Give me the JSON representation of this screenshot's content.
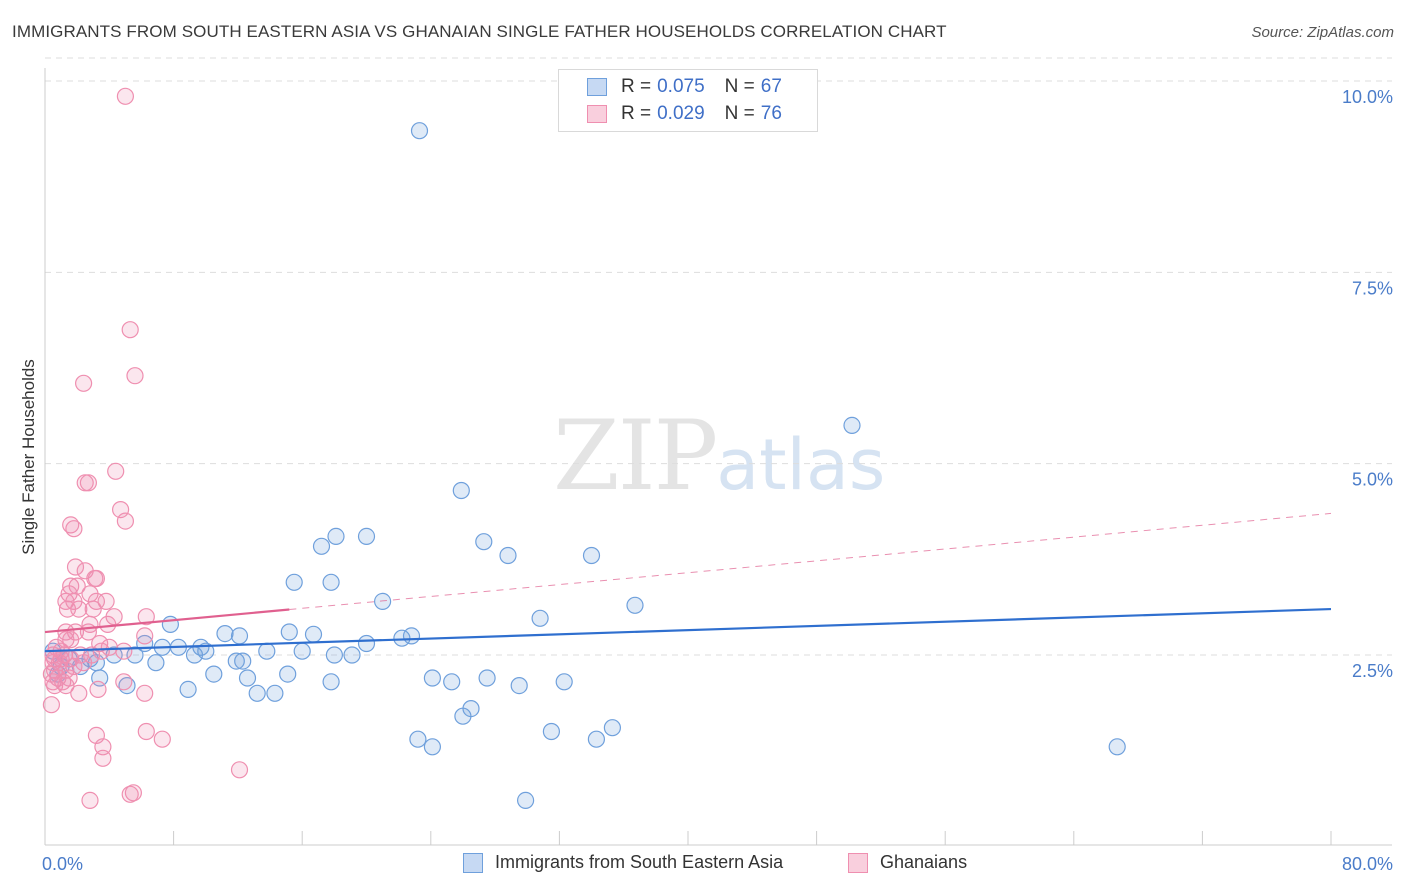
{
  "title": "IMMIGRANTS FROM SOUTH EASTERN ASIA VS GHANAIAN SINGLE FATHER HOUSEHOLDS CORRELATION CHART",
  "source": "Source: ZipAtlas.com",
  "watermark": {
    "zip": "ZIP",
    "atlas": "atlas"
  },
  "legend": {
    "blue": {
      "r_label": "R = ",
      "r_value": "0.075",
      "n_label": "N = ",
      "n_value": "67"
    },
    "pink": {
      "r_label": "R = ",
      "r_value": "0.029",
      "n_label": "N = ",
      "n_value": "76"
    }
  },
  "colors": {
    "blue": "#6fa0dc",
    "blue_line": "#2f6fcf",
    "pink": "#ef8fb0",
    "pink_line": "#e0608f",
    "axis_text": "#4a7cc9",
    "grid": "#dddddd"
  },
  "chart_data": {
    "type": "scatter",
    "title": "IMMIGRANTS FROM SOUTH EASTERN ASIA VS GHANAIAN SINGLE FATHER HOUSEHOLDS CORRELATION CHART",
    "xlabel": "",
    "ylabel": "Single Father Households",
    "xlim": [
      0,
      80
    ],
    "ylim": [
      0,
      10.3
    ],
    "x_tick_labels": [
      {
        "value": 0,
        "label": "0.0%"
      },
      {
        "value": 80,
        "label": "80.0%"
      }
    ],
    "y_tick_labels": [
      {
        "value": 2.5,
        "label": "2.5%"
      },
      {
        "value": 5.0,
        "label": "5.0%"
      },
      {
        "value": 7.5,
        "label": "7.5%"
      },
      {
        "value": 10.0,
        "label": "10.0%"
      }
    ],
    "series": [
      {
        "name": "Immigrants from South Eastern Asia",
        "color": "#6fa0dc",
        "R": 0.075,
        "N": 67,
        "trend": {
          "x0": 0,
          "y0": 2.55,
          "x1": 80,
          "y1": 3.1,
          "dashed_from": null
        },
        "points": [
          [
            23.3,
            9.35
          ],
          [
            50.2,
            5.5
          ],
          [
            25.9,
            4.65
          ],
          [
            18.1,
            4.05
          ],
          [
            20.0,
            4.05
          ],
          [
            17.2,
            3.92
          ],
          [
            27.3,
            3.98
          ],
          [
            28.8,
            3.8
          ],
          [
            34.0,
            3.8
          ],
          [
            15.5,
            3.45
          ],
          [
            17.8,
            3.45
          ],
          [
            21.0,
            3.2
          ],
          [
            36.7,
            3.15
          ],
          [
            30.8,
            2.98
          ],
          [
            7.8,
            2.9
          ],
          [
            11.2,
            2.78
          ],
          [
            12.1,
            2.75
          ],
          [
            15.2,
            2.8
          ],
          [
            16.7,
            2.77
          ],
          [
            22.2,
            2.72
          ],
          [
            22.8,
            2.75
          ],
          [
            20.0,
            2.65
          ],
          [
            6.2,
            2.65
          ],
          [
            8.3,
            2.6
          ],
          [
            9.7,
            2.6
          ],
          [
            7.3,
            2.6
          ],
          [
            10.0,
            2.55
          ],
          [
            13.8,
            2.55
          ],
          [
            16.0,
            2.55
          ],
          [
            19.1,
            2.5
          ],
          [
            18.0,
            2.5
          ],
          [
            0.5,
            2.55
          ],
          [
            1.5,
            2.45
          ],
          [
            2.8,
            2.45
          ],
          [
            3.2,
            2.4
          ],
          [
            4.3,
            2.5
          ],
          [
            5.6,
            2.5
          ],
          [
            6.9,
            2.4
          ],
          [
            9.3,
            2.5
          ],
          [
            11.9,
            2.42
          ],
          [
            12.3,
            2.42
          ],
          [
            1.0,
            2.35
          ],
          [
            2.2,
            2.35
          ],
          [
            3.4,
            2.2
          ],
          [
            10.5,
            2.25
          ],
          [
            12.6,
            2.2
          ],
          [
            15.1,
            2.25
          ],
          [
            17.8,
            2.15
          ],
          [
            24.1,
            2.2
          ],
          [
            25.3,
            2.15
          ],
          [
            27.5,
            2.2
          ],
          [
            29.5,
            2.1
          ],
          [
            32.3,
            2.15
          ],
          [
            5.1,
            2.1
          ],
          [
            8.9,
            2.05
          ],
          [
            13.2,
            2.0
          ],
          [
            14.3,
            2.0
          ],
          [
            0.8,
            2.25
          ],
          [
            26.5,
            1.8
          ],
          [
            26.0,
            1.7
          ],
          [
            23.2,
            1.4
          ],
          [
            24.1,
            1.3
          ],
          [
            31.5,
            1.5
          ],
          [
            34.3,
            1.4
          ],
          [
            35.3,
            1.55
          ],
          [
            66.7,
            1.3
          ],
          [
            29.9,
            0.6
          ]
        ]
      },
      {
        "name": "Ghanaians",
        "color": "#ef8fb0",
        "R": 0.029,
        "N": 76,
        "trend": {
          "x0": 0,
          "y0": 2.8,
          "x1": 80,
          "y1": 4.35,
          "dashed_from": 15.2
        },
        "points": [
          [
            5.0,
            9.8
          ],
          [
            5.3,
            6.75
          ],
          [
            5.6,
            6.15
          ],
          [
            2.4,
            6.05
          ],
          [
            4.4,
            4.9
          ],
          [
            2.5,
            4.75
          ],
          [
            2.7,
            4.75
          ],
          [
            4.7,
            4.4
          ],
          [
            5.0,
            4.25
          ],
          [
            1.6,
            4.2
          ],
          [
            1.8,
            4.15
          ],
          [
            1.9,
            3.65
          ],
          [
            2.5,
            3.6
          ],
          [
            3.1,
            3.5
          ],
          [
            3.2,
            3.5
          ],
          [
            1.6,
            3.4
          ],
          [
            2.0,
            3.4
          ],
          [
            1.5,
            3.3
          ],
          [
            2.8,
            3.3
          ],
          [
            1.3,
            3.2
          ],
          [
            1.8,
            3.2
          ],
          [
            3.2,
            3.2
          ],
          [
            3.8,
            3.2
          ],
          [
            1.4,
            3.1
          ],
          [
            2.1,
            3.1
          ],
          [
            3.0,
            3.1
          ],
          [
            4.3,
            3.0
          ],
          [
            6.3,
            3.0
          ],
          [
            2.8,
            2.9
          ],
          [
            3.9,
            2.9
          ],
          [
            1.3,
            2.8
          ],
          [
            1.9,
            2.8
          ],
          [
            2.7,
            2.8
          ],
          [
            6.2,
            2.75
          ],
          [
            1.3,
            2.7
          ],
          [
            1.6,
            2.7
          ],
          [
            3.4,
            2.65
          ],
          [
            4.0,
            2.6
          ],
          [
            0.7,
            2.6
          ],
          [
            1.0,
            2.55
          ],
          [
            3.5,
            2.55
          ],
          [
            4.9,
            2.55
          ],
          [
            0.5,
            2.5
          ],
          [
            1.2,
            2.5
          ],
          [
            2.2,
            2.5
          ],
          [
            2.9,
            2.5
          ],
          [
            0.6,
            2.45
          ],
          [
            1.0,
            2.45
          ],
          [
            1.6,
            2.45
          ],
          [
            2.4,
            2.4
          ],
          [
            0.5,
            2.4
          ],
          [
            0.9,
            2.4
          ],
          [
            1.8,
            2.35
          ],
          [
            0.6,
            2.3
          ],
          [
            1.3,
            2.3
          ],
          [
            0.4,
            2.25
          ],
          [
            0.8,
            2.2
          ],
          [
            1.5,
            2.2
          ],
          [
            0.5,
            2.15
          ],
          [
            1.1,
            2.15
          ],
          [
            4.9,
            2.15
          ],
          [
            0.6,
            2.1
          ],
          [
            1.3,
            2.1
          ],
          [
            3.3,
            2.05
          ],
          [
            2.1,
            2.0
          ],
          [
            6.2,
            2.0
          ],
          [
            0.4,
            1.85
          ],
          [
            3.2,
            1.45
          ],
          [
            6.3,
            1.5
          ],
          [
            7.3,
            1.4
          ],
          [
            3.6,
            1.3
          ],
          [
            3.6,
            1.15
          ],
          [
            12.1,
            1.0
          ],
          [
            5.5,
            0.7
          ],
          [
            5.3,
            0.68
          ],
          [
            2.8,
            0.6
          ]
        ]
      }
    ]
  },
  "bottom_legend": {
    "blue_label": "Immigrants from South Eastern Asia",
    "pink_label": "Ghanaians"
  }
}
